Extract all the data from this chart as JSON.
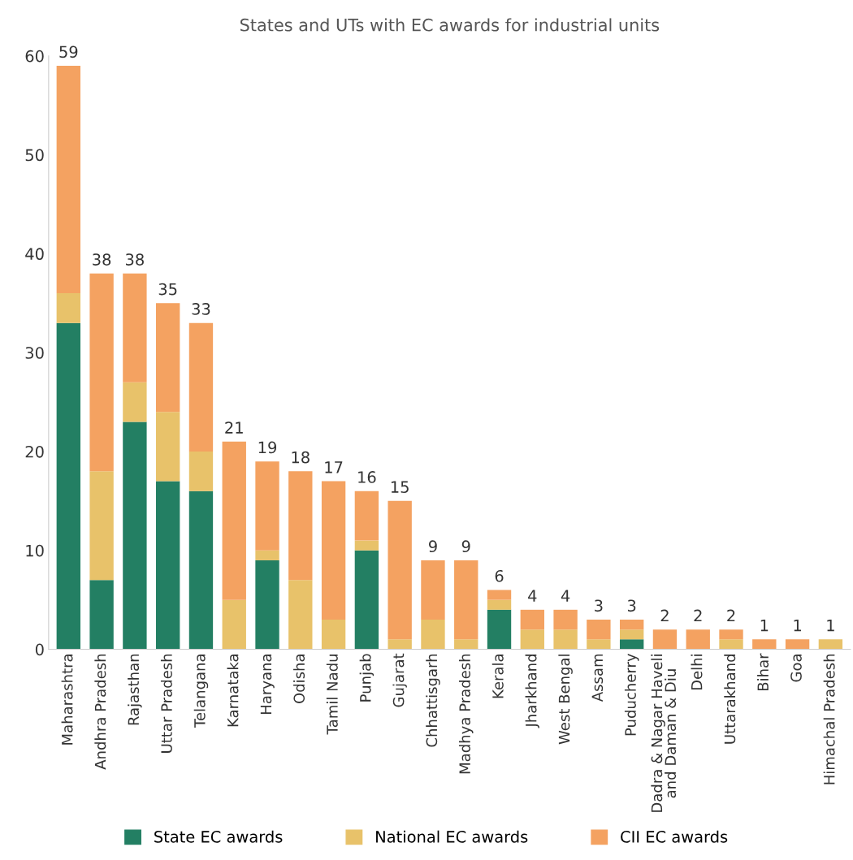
{
  "chart_data": {
    "type": "bar",
    "title": "States and UTs with EC awards for industrial units",
    "categories": [
      "Maharashtra",
      "Andhra Pradesh",
      "Rajasthan",
      "Uttar Pradesh",
      "Telangana",
      "Karnataka",
      "Haryana",
      "Odisha",
      "Tamil Nadu",
      "Punjab",
      "Gujarat",
      "Chhattisgarh",
      "Madhya Pradesh",
      "Kerala",
      "Jharkhand",
      "West Bengal",
      "Assam",
      "Puducherry",
      "Dadra & Nagar Haveli\nand Daman & Diu",
      "Delhi",
      "Uttarakhand",
      "Bihar",
      "Goa",
      "Himachal Pradesh"
    ],
    "stacked": true,
    "series": [
      {
        "name": "State EC awards",
        "color": "#237f63",
        "values": [
          33,
          7,
          23,
          17,
          16,
          0,
          9,
          0,
          0,
          10,
          0,
          0,
          0,
          4,
          0,
          0,
          0,
          1,
          0,
          0,
          0,
          0,
          0,
          0
        ]
      },
      {
        "name": "National EC awards",
        "color": "#e8c26a",
        "values": [
          3,
          11,
          4,
          7,
          4,
          5,
          1,
          7,
          3,
          1,
          1,
          3,
          1,
          1,
          2,
          2,
          1,
          1,
          0,
          0,
          1,
          0,
          0,
          1
        ]
      },
      {
        "name": "CII EC awards",
        "color": "#f4a261",
        "values": [
          23,
          20,
          11,
          11,
          13,
          16,
          9,
          11,
          14,
          5,
          14,
          6,
          8,
          1,
          2,
          2,
          2,
          1,
          2,
          2,
          1,
          1,
          1,
          0
        ]
      }
    ],
    "totals": [
      "59",
      "38",
      "38",
      "35",
      "33",
      "21",
      "19",
      "18",
      "17",
      "16",
      "15",
      "9",
      "9",
      "6",
      "4",
      "4",
      "3",
      "3",
      "2",
      "2",
      "2",
      "1",
      "1",
      "1"
    ],
    "ylim": [
      0,
      60
    ],
    "yticks": [
      0,
      10,
      20,
      30,
      40,
      50,
      60
    ],
    "grid": false,
    "legend": "bottom"
  }
}
